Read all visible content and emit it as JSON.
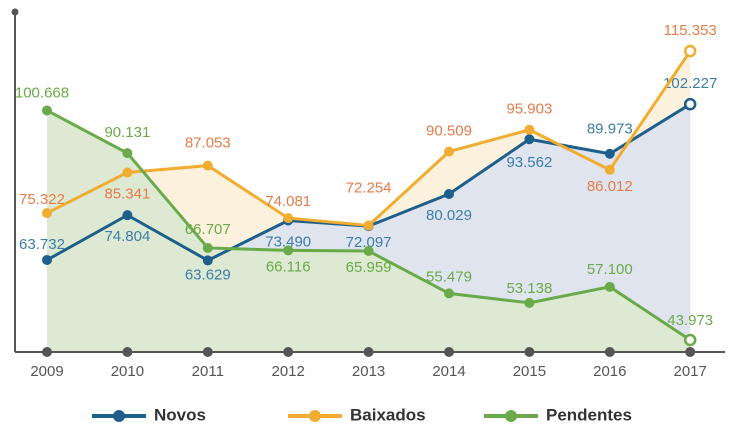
{
  "chart_data": {
    "type": "line",
    "categories": [
      "2009",
      "2010",
      "2011",
      "2012",
      "2013",
      "2014",
      "2015",
      "2016",
      "2017"
    ],
    "series": [
      {
        "name": "Novos",
        "color": "#1f5f8b",
        "label_color": "#3b7ea8",
        "fill": "#dfe4ee",
        "values": [
          63.732,
          74.804,
          63.629,
          73.49,
          72.097,
          80.029,
          93.562,
          89.973,
          102.227
        ],
        "value_labels": [
          "63.732",
          "74.804",
          "63.629",
          "73.490",
          "72.097",
          "80.029",
          "93.562",
          "89.973",
          "102.227"
        ]
      },
      {
        "name": "Baixados",
        "color": "#f0ad32",
        "label_color": "#e57c4a",
        "fill": "#fcf1dc",
        "values": [
          75.322,
          85.341,
          87.053,
          74.081,
          72.254,
          90.509,
          95.903,
          86.012,
          115.353
        ],
        "value_labels": [
          "75.322",
          "85.341",
          "87.053",
          "74.081",
          "72.254",
          "90.509",
          "95.903",
          "86.012",
          "115.353"
        ]
      },
      {
        "name": "Pendentes",
        "color": "#6aaa4a",
        "label_color": "#6aaa4a",
        "fill": "#dde9d3",
        "values": [
          100.668,
          90.131,
          66.707,
          66.116,
          65.959,
          55.479,
          53.138,
          57.1,
          43.973
        ],
        "value_labels": [
          "100.668",
          "90.131",
          "66.707",
          "66.116",
          "65.959",
          "55.479",
          "53.138",
          "57.100",
          "43.973"
        ]
      }
    ],
    "ylim": [
      41,
      125
    ]
  }
}
